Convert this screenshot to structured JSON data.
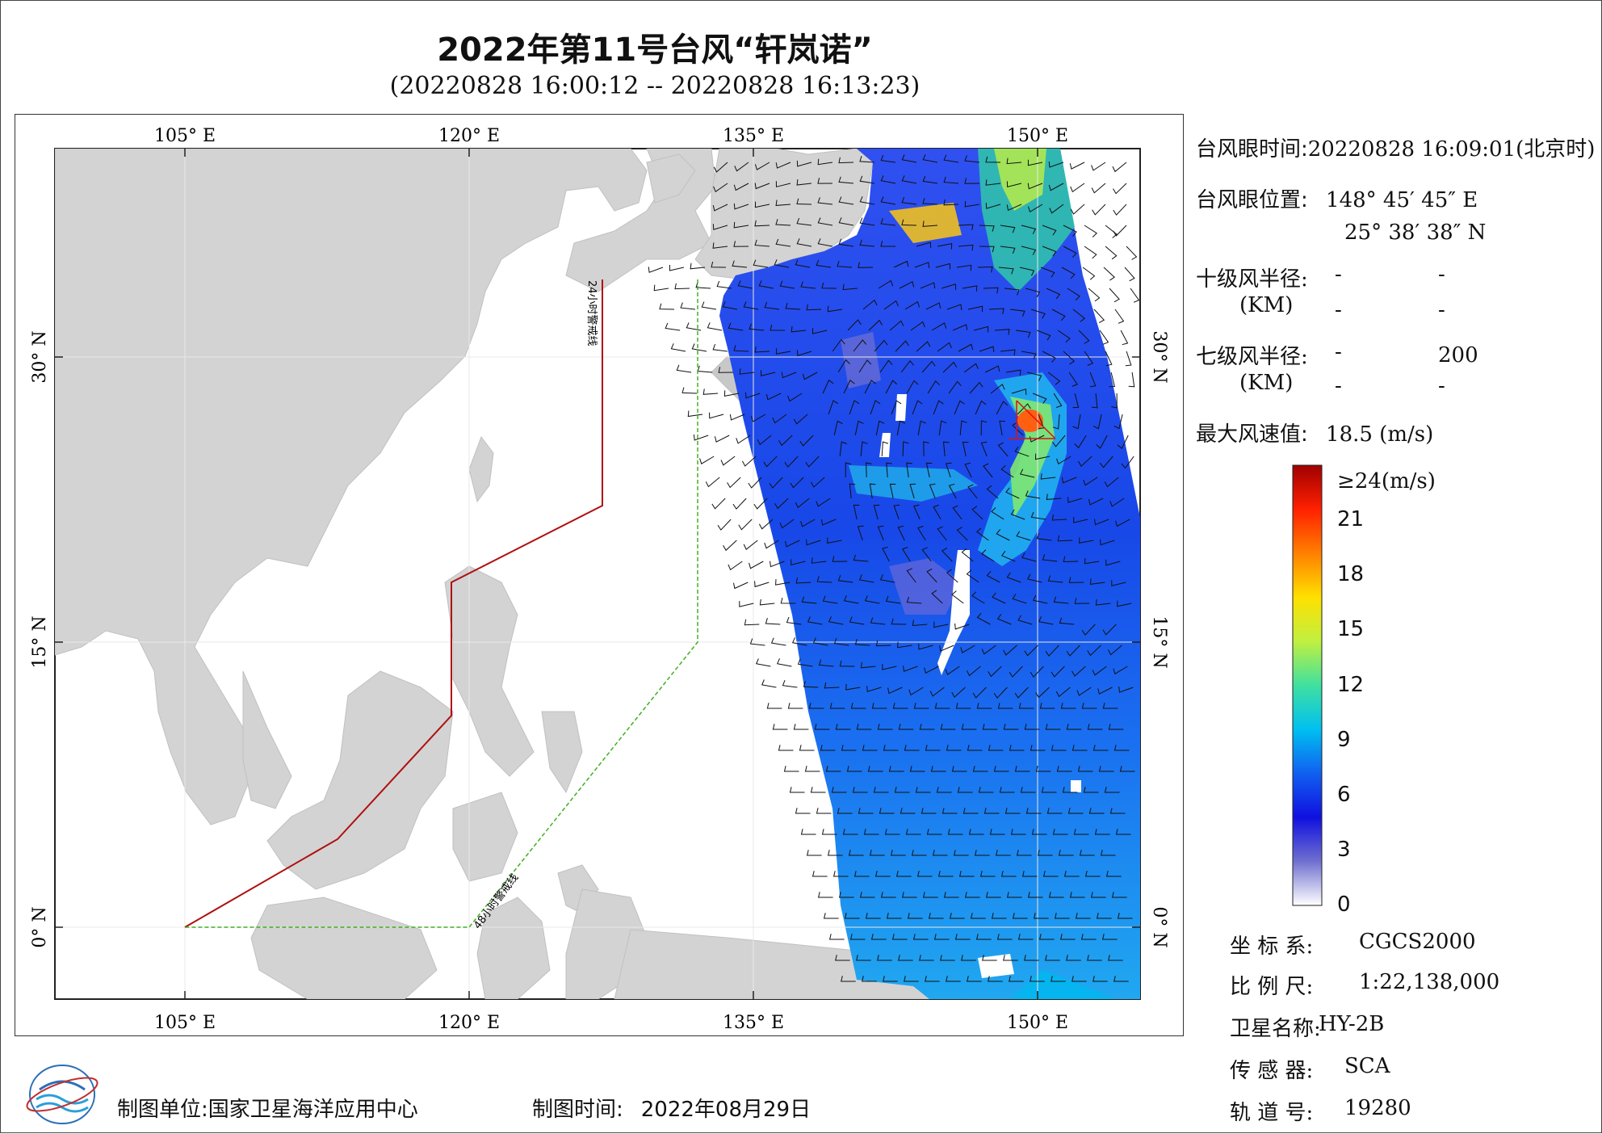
{
  "title": "2022年第11号台风“轩岚诺”",
  "subtitle": "(20220828 16:00:12 -- 20220828 16:13:23)",
  "axes": {
    "lon_ticks": [
      "105° E",
      "120° E",
      "135° E",
      "150° E"
    ],
    "lat_ticks": [
      "30° N",
      "15° N",
      "0° N"
    ]
  },
  "map_labels": {
    "warning_24h": "24小时警戒线",
    "warning_48h": "48小时警戒线"
  },
  "info": {
    "eye_time_label": "台风眼时间:",
    "eye_time_value": "20220828 16:09:01(北京时)",
    "eye_pos_label": "台风眼位置:",
    "eye_lon": "148° 45′ 45″ E",
    "eye_lat": "25° 38′ 38″ N",
    "r10_label": "十级风半径:",
    "r10_unit": "(KM)",
    "r10_values": [
      "-",
      "-",
      "-",
      "-"
    ],
    "r7_label": "七级风半径:",
    "r7_unit": "(KM)",
    "r7_values": [
      "-",
      "200",
      "-",
      "-"
    ],
    "max_label": "最大风速值:",
    "max_value": "18.5 (m/s)"
  },
  "colorbar": {
    "title": "≥24(m/s)",
    "ticks": [
      "21",
      "18",
      "15",
      "12",
      "9",
      "6",
      "3",
      "0"
    ],
    "tick_values": [
      21,
      18,
      15,
      12,
      9,
      6,
      3,
      0
    ],
    "max": 24,
    "colors": [
      "#ffffff",
      "#7070d0",
      "#1010e0",
      "#1060f0",
      "#00c0f0",
      "#40e0a0",
      "#c0f040",
      "#ffe000",
      "#ff8000",
      "#ff2000",
      "#a00000"
    ]
  },
  "meta": {
    "crs_label": "坐 标 系:",
    "crs_value": "CGCS2000",
    "scale_label": "比 例 尺:",
    "scale_value": "1:22,138,000",
    "sat_label": "卫星名称:",
    "sat_value": "HY-2B",
    "sensor_label": "传 感 器:",
    "sensor_value": "SCA",
    "orbit_label": "轨 道 号:",
    "orbit_value": "19280"
  },
  "footer": {
    "unit_label": "制图单位:",
    "unit_value": "国家卫星海洋应用中心",
    "time_label": "制图时间:",
    "time_value": "2022年08月29日"
  },
  "colors": {
    "land": "#d3d3d3",
    "warning_24h": "#b01010",
    "warning_48h": "#40b020",
    "eye_marker": "#e01010"
  }
}
